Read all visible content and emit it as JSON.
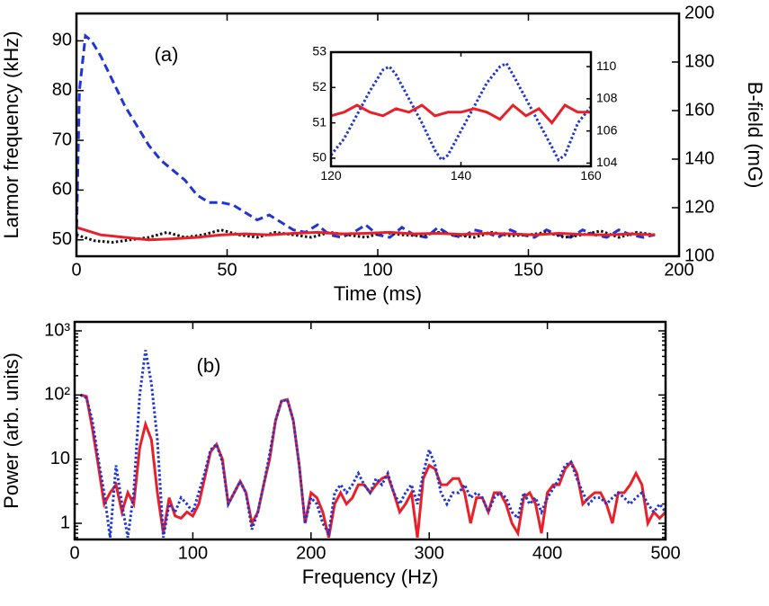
{
  "chart_data": [
    {
      "type": "line",
      "annotation": "(a)",
      "x_label": "Time (ms)",
      "y_label": "Larmor frequency (kHz)",
      "y2_label": "B-field (mG)",
      "xlim": [
        0,
        200
      ],
      "xticks": [
        0,
        50,
        100,
        150,
        200
      ],
      "ylim": [
        46.7,
        95.5
      ],
      "yticks": [
        50,
        60,
        70,
        80,
        90
      ],
      "y2lim": [
        100,
        200
      ],
      "y2ticks": [
        100,
        120,
        140,
        160,
        180,
        200
      ],
      "series": [
        {
          "color": "#1f35d6",
          "linestyle": "dashed",
          "x": [
            0,
            1,
            3,
            5,
            8,
            12,
            16,
            20,
            24,
            28,
            32,
            36,
            40,
            44,
            48,
            52,
            56,
            60,
            64,
            68,
            72,
            76,
            80,
            84,
            88,
            92,
            96,
            100,
            104,
            108,
            112,
            116,
            120,
            124,
            128,
            132,
            136,
            140,
            144,
            148,
            152,
            156,
            160,
            164,
            168,
            172,
            176,
            180,
            184,
            188,
            192
          ],
          "values": [
            50,
            80,
            91,
            90,
            87,
            82,
            77,
            73,
            69,
            66,
            64,
            62,
            59,
            57.5,
            57.5,
            57,
            55.5,
            54,
            55,
            53.5,
            52,
            51.5,
            53,
            51,
            50.5,
            51.5,
            53,
            51,
            50.5,
            52.5,
            51,
            50.5,
            52.5,
            51,
            50.5,
            52,
            51.5,
            50.5,
            52,
            51,
            50.5,
            52,
            51,
            50.5,
            52,
            51,
            50.5,
            52,
            51,
            50.5,
            51
          ]
        },
        {
          "color": "#111111",
          "linestyle": "dotted",
          "x": [
            0,
            6,
            12,
            18,
            24,
            30,
            36,
            42,
            48,
            54,
            60,
            66,
            72,
            78,
            84,
            90,
            96,
            102,
            108,
            114,
            120,
            126,
            132,
            138,
            144,
            150,
            156,
            162,
            168,
            174,
            180,
            186,
            192
          ],
          "values": [
            51,
            49.8,
            49.5,
            50,
            50.5,
            51.5,
            50.5,
            51,
            52,
            51,
            50.5,
            51.5,
            51,
            50.5,
            51.5,
            51,
            50.5,
            51.5,
            51,
            50.8,
            51.5,
            51,
            50.5,
            51.5,
            50.8,
            51,
            51.5,
            50.5,
            51,
            51.8,
            50.5,
            51.5,
            51
          ]
        },
        {
          "color": "#e8202a",
          "linestyle": "solid",
          "x": [
            0,
            8,
            16,
            24,
            32,
            40,
            48,
            56,
            64,
            72,
            80,
            88,
            96,
            104,
            112,
            120,
            128,
            136,
            144,
            152,
            160,
            168,
            176,
            184,
            192
          ],
          "values": [
            52.5,
            51,
            50.5,
            50,
            50.2,
            50.5,
            51,
            51.2,
            51,
            51.3,
            51.5,
            51.2,
            51.3,
            51.5,
            51.2,
            51.3,
            51.1,
            51.3,
            51.2,
            51,
            51.3,
            51.1,
            51,
            51.2,
            51
          ]
        }
      ]
    },
    {
      "type": "line",
      "xlim": [
        120,
        160
      ],
      "xticks": [
        120,
        140,
        160
      ],
      "ylim": [
        49.77,
        53
      ],
      "yticks": [
        50,
        51,
        52,
        53
      ],
      "y2lim": [
        103.8,
        110.9
      ],
      "y2ticks": [
        104,
        106,
        108,
        110
      ],
      "series": [
        {
          "color": "#1f35d6",
          "linestyle": "dotted",
          "axis": "y2",
          "x": [
            120,
            122,
            124,
            126,
            128,
            129,
            130,
            132,
            134,
            136,
            137,
            138,
            140,
            142,
            144,
            146,
            147,
            148,
            150,
            152,
            154,
            155,
            156,
            158,
            160
          ],
          "values": [
            104.5,
            105.5,
            107,
            108.5,
            109.8,
            110,
            109.5,
            108,
            106.5,
            104.8,
            104.2,
            104.5,
            106,
            107.5,
            109,
            110,
            110.2,
            109.5,
            108,
            106.5,
            105,
            104.2,
            104.5,
            106.5,
            107.5
          ]
        },
        {
          "color": "#e8202a",
          "linestyle": "solid",
          "x": [
            120,
            122,
            124,
            126,
            128,
            130,
            132,
            134,
            136,
            138,
            140,
            142,
            144,
            146,
            148,
            150,
            152,
            154,
            156,
            158,
            160
          ],
          "values": [
            51.2,
            51.3,
            51.5,
            51.3,
            51.2,
            51.4,
            51.3,
            51.5,
            51.2,
            51.3,
            51.3,
            51.4,
            51.3,
            51.1,
            51.5,
            51.2,
            51.4,
            51.0,
            51.5,
            51.3,
            51.3
          ]
        }
      ]
    },
    {
      "type": "line",
      "annotation": "(b)",
      "x_label": "Frequency (Hz)",
      "y_label": "Power (arb. units)",
      "log_y": true,
      "xlim": [
        0,
        500
      ],
      "xticks": [
        0,
        100,
        200,
        300,
        400,
        500
      ],
      "ylim": [
        0.56,
        1380
      ],
      "yticks": [
        1,
        10,
        {
          "value": 100,
          "label": "10²"
        },
        {
          "value": 1000,
          "label": "10³"
        }
      ],
      "series": [
        {
          "color": "#e8202a",
          "linestyle": "solid",
          "x": [
            5,
            10,
            15,
            20,
            25,
            30,
            35,
            40,
            45,
            50,
            55,
            60,
            65,
            70,
            75,
            80,
            85,
            90,
            95,
            100,
            105,
            110,
            115,
            120,
            125,
            130,
            135,
            140,
            145,
            150,
            155,
            160,
            165,
            170,
            175,
            180,
            185,
            190,
            195,
            200,
            205,
            210,
            215,
            220,
            225,
            230,
            235,
            240,
            245,
            250,
            255,
            260,
            265,
            270,
            275,
            280,
            285,
            290,
            295,
            300,
            305,
            310,
            315,
            320,
            325,
            330,
            335,
            340,
            345,
            350,
            355,
            360,
            365,
            370,
            375,
            380,
            385,
            390,
            395,
            400,
            405,
            410,
            415,
            420,
            425,
            430,
            435,
            440,
            445,
            450,
            455,
            460,
            465,
            470,
            475,
            480,
            485,
            490,
            495,
            500
          ],
          "values": [
            100,
            95,
            30,
            8,
            2,
            3,
            4,
            1.5,
            3,
            2,
            15,
            35,
            20,
            3,
            0.7,
            2.5,
            1.3,
            1.2,
            1.5,
            1.3,
            2,
            5,
            13,
            17,
            10,
            2,
            3,
            4.5,
            3,
            1,
            1.5,
            4,
            10,
            40,
            80,
            85,
            40,
            8,
            1,
            3,
            2.5,
            1.5,
            0.6,
            2,
            3,
            2,
            2.5,
            4,
            4,
            3,
            4,
            5,
            5.5,
            3,
            1.5,
            2,
            3,
            0.6,
            5,
            8,
            7,
            4,
            4,
            5,
            5,
            3,
            1,
            2.5,
            2.5,
            1.5,
            3,
            3,
            2,
            1,
            0.7,
            2.5,
            3,
            2,
            0.7,
            3,
            4,
            4,
            7,
            9,
            6,
            2,
            2.5,
            3,
            3,
            2,
            1,
            3,
            3,
            4,
            6,
            4,
            1,
            1.5,
            1.2,
            1.5
          ]
        },
        {
          "color": "#1f35d6",
          "linestyle": "dotted",
          "x": [
            5,
            10,
            15,
            20,
            25,
            30,
            35,
            40,
            45,
            50,
            55,
            60,
            65,
            70,
            75,
            80,
            85,
            90,
            95,
            100,
            105,
            110,
            115,
            120,
            125,
            130,
            135,
            140,
            145,
            150,
            155,
            160,
            165,
            170,
            175,
            180,
            185,
            190,
            195,
            200,
            205,
            210,
            215,
            220,
            225,
            230,
            235,
            240,
            245,
            250,
            255,
            260,
            265,
            270,
            275,
            280,
            285,
            290,
            295,
            300,
            305,
            310,
            315,
            320,
            325,
            330,
            335,
            340,
            345,
            350,
            355,
            360,
            365,
            370,
            375,
            380,
            385,
            390,
            395,
            400,
            405,
            410,
            415,
            420,
            425,
            430,
            435,
            440,
            445,
            450,
            455,
            460,
            465,
            470,
            475,
            480,
            485,
            490,
            495,
            500
          ],
          "values": [
            100,
            90,
            40,
            10,
            3,
            0.6,
            8,
            2,
            0.6,
            3,
            100,
            500,
            150,
            20,
            0.6,
            2,
            1.5,
            2.5,
            2,
            1.5,
            3,
            6,
            14,
            17,
            9,
            2,
            3,
            4.5,
            3,
            0.8,
            1.5,
            4,
            12,
            40,
            80,
            85,
            40,
            8,
            1,
            2.5,
            2,
            1,
            0.7,
            3,
            4,
            3,
            4,
            6,
            4,
            3,
            5,
            4,
            6,
            3,
            2,
            3,
            4,
            2,
            6,
            14,
            8,
            3,
            2,
            3,
            3,
            4,
            2.5,
            3,
            2.5,
            1.5,
            2.5,
            3,
            2.5,
            1.5,
            1.2,
            3,
            2,
            2.5,
            1.5,
            2.5,
            3.5,
            5,
            8,
            9,
            5,
            3,
            2,
            2.5,
            2.5,
            2,
            2.5,
            3,
            2.5,
            2,
            2.5,
            3,
            2,
            1.5,
            2,
            1.5
          ]
        }
      ]
    }
  ]
}
